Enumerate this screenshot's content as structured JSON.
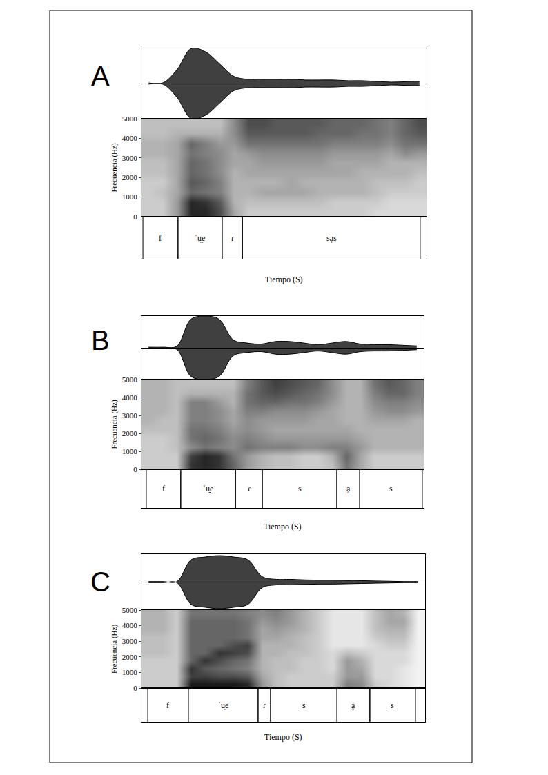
{
  "chart_data": [
    {
      "type": "spectrogram",
      "title": "A",
      "y_label": "Frecuencia (Hz)",
      "x_label": "Tiempo (S)",
      "xlim": [
        0,
        100
      ],
      "ylim": [
        0,
        5000
      ],
      "yticks": [
        0,
        1000,
        2000,
        3000,
        4000,
        5000
      ],
      "tick_labels": "y",
      "color": "#000000",
      "waveform": {
        "ylim": [
          -1,
          1
        ],
        "time": [
          2.5,
          7.5,
          12.5,
          17.5,
          22.5,
          27.5,
          32.5,
          37.5,
          42.5,
          47.5,
          52.5,
          57.5,
          62.5,
          67.5,
          72.5,
          77.5,
          82.5,
          87.5,
          92.5,
          97.5
        ],
        "amplitude": [
          0.02,
          0.02,
          0.4,
          1.0,
          0.9,
          0.55,
          0.2,
          0.12,
          0.12,
          0.12,
          0.12,
          0.1,
          0.1,
          0.1,
          0.08,
          0.08,
          0.06,
          0.04,
          0.05,
          0.06
        ]
      },
      "spectrogram": {
        "intensity_range": [
          0,
          1
        ],
        "time": [
          2.5,
          7.5,
          12.5,
          17.5,
          22.5,
          27.5,
          32.5,
          37.5,
          42.5,
          47.5,
          52.5,
          57.5,
          62.5,
          67.5,
          72.5,
          77.5,
          82.5,
          87.5,
          92.5,
          97.5
        ],
        "frequency": [
          250,
          750,
          1250,
          1750,
          2250,
          2750,
          3250,
          3750,
          4250,
          4750
        ],
        "intensity": [
          [
            0.2,
            0.2,
            0.4,
            0.85,
            0.85,
            0.7,
            0.35,
            0.2,
            0.2,
            0.2,
            0.2,
            0.2,
            0.2,
            0.2,
            0.2,
            0.2,
            0.15,
            0.15,
            0.15,
            0.15
          ],
          [
            0.2,
            0.2,
            0.4,
            0.85,
            0.8,
            0.65,
            0.3,
            0.25,
            0.25,
            0.25,
            0.25,
            0.25,
            0.25,
            0.2,
            0.2,
            0.2,
            0.2,
            0.15,
            0.15,
            0.15
          ],
          [
            0.2,
            0.25,
            0.35,
            0.6,
            0.55,
            0.5,
            0.3,
            0.3,
            0.35,
            0.35,
            0.35,
            0.35,
            0.3,
            0.3,
            0.3,
            0.3,
            0.25,
            0.2,
            0.2,
            0.2
          ],
          [
            0.2,
            0.2,
            0.35,
            0.65,
            0.6,
            0.5,
            0.3,
            0.3,
            0.3,
            0.3,
            0.35,
            0.3,
            0.3,
            0.3,
            0.3,
            0.3,
            0.25,
            0.25,
            0.25,
            0.2
          ],
          [
            0.25,
            0.25,
            0.35,
            0.6,
            0.55,
            0.45,
            0.3,
            0.35,
            0.35,
            0.35,
            0.35,
            0.35,
            0.35,
            0.35,
            0.35,
            0.3,
            0.3,
            0.3,
            0.3,
            0.25
          ],
          [
            0.25,
            0.25,
            0.35,
            0.6,
            0.55,
            0.45,
            0.35,
            0.35,
            0.4,
            0.4,
            0.4,
            0.4,
            0.4,
            0.35,
            0.35,
            0.35,
            0.35,
            0.3,
            0.3,
            0.3
          ],
          [
            0.3,
            0.3,
            0.35,
            0.55,
            0.5,
            0.45,
            0.35,
            0.4,
            0.45,
            0.45,
            0.45,
            0.45,
            0.45,
            0.4,
            0.4,
            0.4,
            0.4,
            0.35,
            0.45,
            0.4
          ],
          [
            0.3,
            0.3,
            0.35,
            0.6,
            0.5,
            0.4,
            0.4,
            0.55,
            0.55,
            0.55,
            0.55,
            0.55,
            0.55,
            0.5,
            0.5,
            0.5,
            0.5,
            0.45,
            0.55,
            0.55
          ],
          [
            0.25,
            0.25,
            0.3,
            0.3,
            0.3,
            0.3,
            0.45,
            0.65,
            0.65,
            0.65,
            0.65,
            0.65,
            0.6,
            0.6,
            0.6,
            0.55,
            0.55,
            0.5,
            0.6,
            0.65
          ],
          [
            0.25,
            0.25,
            0.25,
            0.25,
            0.25,
            0.25,
            0.45,
            0.7,
            0.7,
            0.65,
            0.65,
            0.65,
            0.65,
            0.6,
            0.6,
            0.6,
            0.55,
            0.5,
            0.6,
            0.7
          ]
        ]
      },
      "segments": [
        {
          "label": "f",
          "start": 0.5,
          "end": 12.8
        },
        {
          "label": "ˈu̯e",
          "start": 12.8,
          "end": 28.3
        },
        {
          "label": "ɾ",
          "start": 28.3,
          "end": 35.4
        },
        {
          "label": "sḁs",
          "start": 35.4,
          "end": 97.8
        }
      ]
    },
    {
      "type": "spectrogram",
      "title": "B",
      "y_label": "Frecuencia (Hz)",
      "x_label": "Tiempo (S)",
      "xlim": [
        0,
        100
      ],
      "ylim": [
        0,
        5000
      ],
      "yticks": [
        0,
        1000,
        2000,
        3000,
        4000,
        5000
      ],
      "tick_labels": "y",
      "color": "#000000",
      "waveform": {
        "ylim": [
          -1,
          1
        ],
        "time": [
          2.5,
          7.5,
          12.5,
          17.5,
          22.5,
          27.5,
          32.5,
          37.5,
          42.5,
          47.5,
          52.5,
          57.5,
          62.5,
          67.5,
          72.5,
          77.5,
          82.5,
          87.5,
          92.5,
          97.5
        ],
        "amplitude": [
          0.02,
          0.02,
          0.05,
          0.9,
          1.0,
          0.9,
          0.25,
          0.15,
          0.12,
          0.2,
          0.2,
          0.15,
          0.1,
          0.15,
          0.2,
          0.12,
          0.1,
          0.1,
          0.08,
          0.06
        ]
      },
      "spectrogram": {
        "intensity_range": [
          0,
          1
        ],
        "time": [
          2.5,
          7.5,
          12.5,
          17.5,
          22.5,
          27.5,
          32.5,
          37.5,
          42.5,
          47.5,
          52.5,
          57.5,
          62.5,
          67.5,
          72.5,
          77.5,
          82.5,
          87.5,
          92.5,
          97.5
        ],
        "frequency": [
          250,
          750,
          1250,
          1750,
          2250,
          2750,
          3250,
          3750,
          4250,
          4750
        ],
        "intensity": [
          [
            0.2,
            0.2,
            0.2,
            0.8,
            0.85,
            0.8,
            0.6,
            0.4,
            0.3,
            0.25,
            0.25,
            0.2,
            0.2,
            0.25,
            0.55,
            0.35,
            0.2,
            0.2,
            0.2,
            0.2
          ],
          [
            0.2,
            0.2,
            0.2,
            0.75,
            0.85,
            0.8,
            0.55,
            0.4,
            0.3,
            0.25,
            0.25,
            0.2,
            0.2,
            0.3,
            0.6,
            0.35,
            0.2,
            0.2,
            0.2,
            0.2
          ],
          [
            0.2,
            0.2,
            0.25,
            0.45,
            0.55,
            0.5,
            0.45,
            0.55,
            0.5,
            0.5,
            0.5,
            0.45,
            0.45,
            0.5,
            0.5,
            0.4,
            0.3,
            0.3,
            0.3,
            0.3
          ],
          [
            0.2,
            0.2,
            0.25,
            0.55,
            0.6,
            0.55,
            0.45,
            0.5,
            0.45,
            0.4,
            0.4,
            0.4,
            0.4,
            0.4,
            0.4,
            0.35,
            0.3,
            0.3,
            0.3,
            0.3
          ],
          [
            0.25,
            0.25,
            0.25,
            0.55,
            0.55,
            0.5,
            0.4,
            0.45,
            0.4,
            0.35,
            0.35,
            0.35,
            0.35,
            0.35,
            0.35,
            0.3,
            0.3,
            0.3,
            0.3,
            0.3
          ],
          [
            0.3,
            0.25,
            0.25,
            0.5,
            0.5,
            0.45,
            0.35,
            0.45,
            0.4,
            0.4,
            0.4,
            0.4,
            0.35,
            0.35,
            0.3,
            0.3,
            0.35,
            0.35,
            0.35,
            0.3
          ],
          [
            0.3,
            0.3,
            0.25,
            0.5,
            0.5,
            0.45,
            0.35,
            0.5,
            0.5,
            0.45,
            0.45,
            0.45,
            0.4,
            0.35,
            0.3,
            0.3,
            0.4,
            0.45,
            0.45,
            0.4
          ],
          [
            0.3,
            0.3,
            0.25,
            0.5,
            0.5,
            0.4,
            0.3,
            0.55,
            0.6,
            0.6,
            0.55,
            0.55,
            0.5,
            0.4,
            0.3,
            0.3,
            0.45,
            0.5,
            0.5,
            0.45
          ],
          [
            0.3,
            0.3,
            0.25,
            0.3,
            0.3,
            0.3,
            0.3,
            0.55,
            0.65,
            0.7,
            0.65,
            0.6,
            0.55,
            0.45,
            0.3,
            0.3,
            0.5,
            0.6,
            0.6,
            0.5
          ],
          [
            0.3,
            0.3,
            0.25,
            0.25,
            0.25,
            0.25,
            0.25,
            0.5,
            0.65,
            0.75,
            0.7,
            0.65,
            0.6,
            0.45,
            0.3,
            0.3,
            0.55,
            0.65,
            0.6,
            0.5
          ]
        ]
      },
      "segments": [
        {
          "label": "f",
          "start": 1.7,
          "end": 13.9
        },
        {
          "label": "ˈu̯e",
          "start": 13.9,
          "end": 33.3
        },
        {
          "label": "ɾ",
          "start": 33.3,
          "end": 42.8
        },
        {
          "label": "s",
          "start": 42.8,
          "end": 69.2
        },
        {
          "label": "ḁ",
          "start": 69.2,
          "end": 77.3
        },
        {
          "label": "s",
          "start": 77.3,
          "end": 99.5
        }
      ]
    },
    {
      "type": "spectrogram",
      "title": "C",
      "y_label": "Frecuencia (Hz)",
      "x_label": "Tiempo (S)",
      "xlim": [
        0,
        100
      ],
      "ylim": [
        0,
        5000
      ],
      "yticks": [
        0,
        1000,
        2000,
        3000,
        4000,
        5000
      ],
      "tick_labels": "y",
      "color": "#000000",
      "waveform": {
        "ylim": [
          -1,
          1
        ],
        "time": [
          2.5,
          7.5,
          12.5,
          17.5,
          22.5,
          27.5,
          32.5,
          37.5,
          42.5,
          47.5,
          52.5,
          57.5,
          62.5,
          67.5,
          72.5,
          77.5,
          82.5,
          87.5,
          92.5,
          97.5
        ],
        "amplitude": [
          0.02,
          0.02,
          0.02,
          0.8,
          0.9,
          0.95,
          0.9,
          0.8,
          0.2,
          0.1,
          0.1,
          0.08,
          0.07,
          0.07,
          0.06,
          0.05,
          0.04,
          0.03,
          0.02,
          0.02
        ]
      },
      "spectrogram": {
        "intensity_range": [
          0,
          1
        ],
        "time": [
          2.5,
          7.5,
          12.5,
          17.5,
          22.5,
          27.5,
          32.5,
          37.5,
          42.5,
          47.5,
          52.5,
          57.5,
          62.5,
          67.5,
          72.5,
          77.5,
          82.5,
          87.5,
          92.5,
          97.5
        ],
        "frequency": [
          250,
          750,
          1250,
          1750,
          2250,
          2750,
          3250,
          3750,
          4250,
          4750
        ],
        "intensity": [
          [
            0.2,
            0.2,
            0.2,
            0.9,
            0.9,
            0.9,
            0.9,
            0.85,
            0.4,
            0.25,
            0.2,
            0.2,
            0.2,
            0.2,
            0.5,
            0.45,
            0.2,
            0.15,
            0.1,
            0.05
          ],
          [
            0.2,
            0.2,
            0.2,
            0.75,
            0.75,
            0.7,
            0.7,
            0.65,
            0.35,
            0.25,
            0.2,
            0.2,
            0.2,
            0.2,
            0.4,
            0.4,
            0.15,
            0.15,
            0.1,
            0.05
          ],
          [
            0.2,
            0.2,
            0.2,
            0.8,
            0.65,
            0.6,
            0.55,
            0.5,
            0.3,
            0.25,
            0.25,
            0.2,
            0.2,
            0.15,
            0.4,
            0.35,
            0.15,
            0.15,
            0.1,
            0.05
          ],
          [
            0.2,
            0.2,
            0.2,
            0.6,
            0.8,
            0.7,
            0.6,
            0.55,
            0.3,
            0.25,
            0.25,
            0.2,
            0.2,
            0.15,
            0.4,
            0.3,
            0.15,
            0.15,
            0.15,
            0.05
          ],
          [
            0.25,
            0.25,
            0.2,
            0.6,
            0.6,
            0.8,
            0.75,
            0.7,
            0.3,
            0.3,
            0.25,
            0.25,
            0.2,
            0.15,
            0.25,
            0.2,
            0.15,
            0.15,
            0.15,
            0.05
          ],
          [
            0.25,
            0.25,
            0.2,
            0.6,
            0.6,
            0.6,
            0.7,
            0.75,
            0.3,
            0.3,
            0.3,
            0.25,
            0.2,
            0.1,
            0.1,
            0.1,
            0.15,
            0.2,
            0.2,
            0.05
          ],
          [
            0.25,
            0.25,
            0.2,
            0.6,
            0.6,
            0.6,
            0.6,
            0.55,
            0.35,
            0.35,
            0.3,
            0.25,
            0.2,
            0.1,
            0.1,
            0.1,
            0.2,
            0.25,
            0.25,
            0.05
          ],
          [
            0.3,
            0.3,
            0.2,
            0.6,
            0.6,
            0.6,
            0.6,
            0.55,
            0.35,
            0.4,
            0.35,
            0.3,
            0.2,
            0.1,
            0.1,
            0.1,
            0.25,
            0.3,
            0.3,
            0.05
          ],
          [
            0.3,
            0.3,
            0.2,
            0.6,
            0.6,
            0.6,
            0.6,
            0.55,
            0.4,
            0.45,
            0.4,
            0.3,
            0.2,
            0.1,
            0.1,
            0.1,
            0.25,
            0.35,
            0.35,
            0.05
          ],
          [
            0.3,
            0.3,
            0.2,
            0.55,
            0.55,
            0.55,
            0.55,
            0.5,
            0.45,
            0.5,
            0.4,
            0.3,
            0.2,
            0.1,
            0.1,
            0.1,
            0.25,
            0.35,
            0.3,
            0.05
          ]
        ]
      },
      "segments": [
        {
          "label": "f",
          "start": 2.2,
          "end": 16.5
        },
        {
          "label": "ˈu̯e",
          "start": 16.5,
          "end": 41.1
        },
        {
          "label": "ɾ",
          "start": 41.1,
          "end": 45.5
        },
        {
          "label": "s",
          "start": 45.5,
          "end": 68.9
        },
        {
          "label": "ḁ",
          "start": 68.9,
          "end": 80.5
        },
        {
          "label": "s",
          "start": 80.5,
          "end": 96.6
        }
      ]
    }
  ]
}
